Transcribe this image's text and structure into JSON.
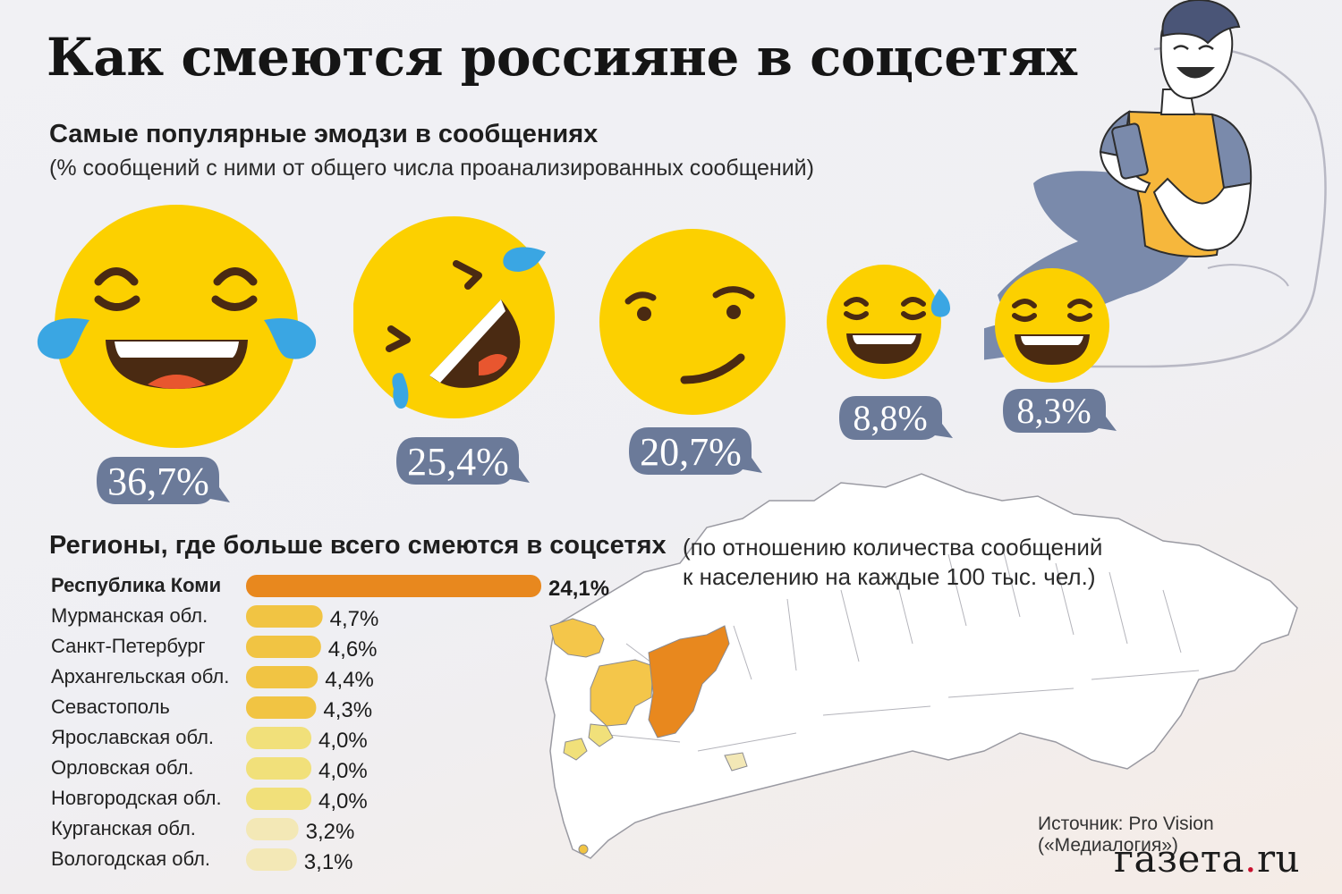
{
  "header": {
    "title": "Как смеются россияне в соцсетях",
    "subtitle": "Самые популярные эмодзи в сообщениях",
    "note": "(% сообщений с ними от общего числа проанализированных сообщений)"
  },
  "colors": {
    "emoji_yellow": "#fcd000",
    "emoji_mouth": "#4a2a12",
    "emoji_tongue": "#e8562f",
    "tear_blue": "#3aa6e3",
    "bubble": "#6b7a99",
    "bar_top": "#e8881e",
    "bar_mid": "#f1c443",
    "bar_low": "#f1e07a",
    "bar_lowest": "#f3e8b6"
  },
  "emojis": {
    "items": [
      {
        "icon": "face-with-tears-of-joy-icon",
        "label": "36,7%"
      },
      {
        "icon": "rolling-on-floor-laughing-icon",
        "label": "25,4%"
      },
      {
        "icon": "smirking-face-icon",
        "label": "20,7%"
      },
      {
        "icon": "grinning-face-with-sweat-icon",
        "label": "8,8%"
      },
      {
        "icon": "grinning-squinting-face-icon",
        "label": "8,3%"
      }
    ]
  },
  "regions": {
    "title": "Регионы, где больше всего смеются в соцсетях",
    "note": "(по отношению количества сообщений к населению на каждые 100 тыс. чел.)"
  },
  "chart_data": {
    "type": "bar",
    "orientation": "horizontal",
    "categories": [
      "Республика Коми",
      "Мурманская обл.",
      "Санкт-Петербург",
      "Архангельская обл.",
      "Севастополь",
      "Ярославская обл.",
      "Орловская обл.",
      "Новгородская обл.",
      "Курганская обл.",
      "Вологодская обл."
    ],
    "values": [
      24.1,
      4.7,
      4.6,
      4.4,
      4.3,
      4.0,
      4.0,
      4.0,
      3.2,
      3.1
    ],
    "value_labels": [
      "24,1%",
      "4,7%",
      "4,6%",
      "4,4%",
      "4,3%",
      "4,0%",
      "4,0%",
      "4,0%",
      "3,2%",
      "3,1%"
    ],
    "unit": "%",
    "bar_colors": [
      "#e8881e",
      "#f1c443",
      "#f1c443",
      "#f1c443",
      "#f1c443",
      "#f1e07a",
      "#f1e07a",
      "#f1e07a",
      "#f3e8b6",
      "#f3e8b6"
    ]
  },
  "footer": {
    "source": "Источник: Pro Vision («Медиалогия»)",
    "logo_main": "газета",
    "logo_dot": ".",
    "logo_tld": "ru"
  }
}
